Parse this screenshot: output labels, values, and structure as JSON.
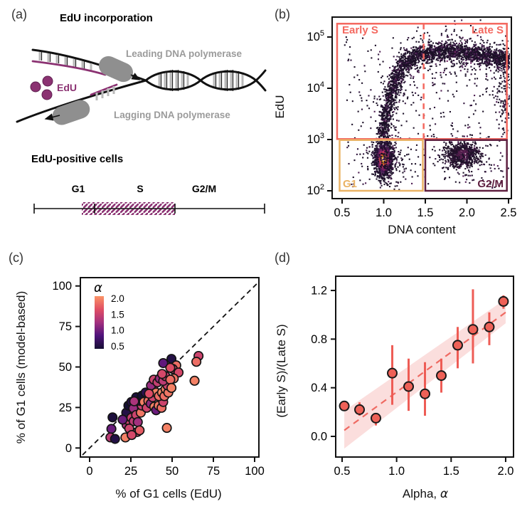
{
  "figure": {
    "panel_labels": {
      "a": "(a)",
      "b": "(b)",
      "c": "(c)",
      "d": "(d)"
    }
  },
  "panel_a": {
    "title": "EdU incorporation",
    "leading_label": "Leading DNA polymerase",
    "lagging_label": "Lagging DNA polymerase",
    "edu_label": "EdU",
    "subtitle": "EdU-positive cells",
    "phase_labels": [
      "G1",
      "S",
      "G2/M"
    ],
    "colors": {
      "edu_purple": "#8b3272",
      "polymerase_gray": "#8f8f8f",
      "label_gray": "#9b9b9b"
    }
  },
  "chart_data": [
    {
      "panel": "b",
      "type": "heatmap",
      "xlabel": "DNA content",
      "ylabel": "EdU",
      "xticks": [
        "0.5",
        "1.0",
        "1.5",
        "2.0",
        "2.5"
      ],
      "yticks": [
        "10^2",
        "10^3",
        "10^4",
        "10^5"
      ],
      "xlim": [
        0.42,
        2.53
      ],
      "ylog_lim": [
        1.85,
        5.39
      ],
      "gates": [
        {
          "label": "Early S",
          "color": "#f4685f"
        },
        {
          "label": "Late S",
          "color": "#f4685f"
        },
        {
          "label": "G1",
          "color": "#eab365"
        },
        {
          "label": "G2/M",
          "color": "#5f1f40"
        }
      ],
      "s_gate": {
        "x0": 0.44,
        "x1": 2.48,
        "y0": 3.01,
        "y1": 5.26
      },
      "g1_gate": {
        "x0": 0.47,
        "x1": 1.47,
        "y0": 2.0,
        "y1": 2.99
      },
      "g2_gate": {
        "x0": 1.5,
        "x1": 2.48,
        "y0": 2.0,
        "y1": 2.99
      },
      "divider_x": 1.48,
      "clusters": [
        {
          "kind": "path",
          "ramp": "arc",
          "n": 2300,
          "sx": 0.04,
          "sy": 0.09,
          "pts": [
            [
              1.0,
              3.02
            ],
            [
              1.03,
              3.45
            ],
            [
              1.1,
              4.0
            ],
            [
              1.2,
              4.38
            ],
            [
              1.33,
              4.58
            ],
            [
              1.48,
              4.67
            ],
            [
              1.63,
              4.71
            ],
            [
              1.8,
              4.72
            ],
            [
              1.95,
              4.7
            ],
            [
              2.1,
              4.66
            ],
            [
              2.25,
              4.62
            ],
            [
              2.4,
              4.58
            ],
            [
              2.5,
              4.55
            ]
          ]
        },
        {
          "kind": "path",
          "ramp": "dark",
          "n": 380,
          "sx": 0.09,
          "sy": 0.28,
          "pts": [
            [
              1.02,
              3.2
            ],
            [
              1.15,
              4.1
            ],
            [
              1.4,
              4.6
            ],
            [
              1.8,
              4.7
            ],
            [
              2.2,
              4.6
            ],
            [
              2.45,
              4.4
            ]
          ]
        },
        {
          "kind": "gauss",
          "ramp": "hot",
          "n": 1700,
          "cx": 1.0,
          "cy": 2.62,
          "sx": 0.045,
          "sy": 0.13
        },
        {
          "kind": "gauss",
          "ramp": "dark",
          "n": 320,
          "cx": 1.02,
          "cy": 2.6,
          "sx": 0.1,
          "sy": 0.24
        },
        {
          "kind": "gauss",
          "ramp": "g2",
          "n": 620,
          "cx": 1.95,
          "cy": 2.7,
          "sx": 0.1,
          "sy": 0.12
        },
        {
          "kind": "gauss",
          "ramp": "dark",
          "n": 150,
          "cx": 1.97,
          "cy": 2.65,
          "sx": 0.17,
          "sy": 0.22
        },
        {
          "kind": "uniform",
          "ramp": "dark",
          "n": 240,
          "x0": 0.52,
          "x1": 2.47,
          "y0": 3.0,
          "y1": 5.0
        },
        {
          "kind": "uniform",
          "ramp": "dark",
          "n": 120,
          "x0": 0.55,
          "x1": 2.45,
          "y0": 2.05,
          "y1": 2.95
        },
        {
          "kind": "path",
          "ramp": "dark",
          "n": 150,
          "sx": 0.05,
          "sy": 0.3,
          "pts": [
            [
              2.44,
              3.3
            ],
            [
              2.47,
              3.9
            ],
            [
              2.49,
              4.4
            ]
          ]
        }
      ]
    },
    {
      "panel": "c",
      "type": "scatter",
      "xlabel": "% of G1 cells (EdU)",
      "ylabel": "% of G1 cells (model-based)",
      "xticks": [
        0,
        25,
        50,
        75,
        100
      ],
      "yticks": [
        0,
        25,
        50,
        75,
        100
      ],
      "xlim": [
        -5.6,
        102.6
      ],
      "ylim": [
        -5.2,
        105.1
      ],
      "identity_line": true,
      "legend": {
        "title": "α",
        "labels": [
          "2.0",
          "1.5",
          "1.0",
          "0.5"
        ],
        "range": [
          0.5,
          2.0
        ]
      },
      "colormap": [
        [
          0.5,
          "#150f33"
        ],
        [
          0.875,
          "#4f127b"
        ],
        [
          1.25,
          "#a3307e"
        ],
        [
          1.625,
          "#e04e64"
        ],
        [
          2.0,
          "#fb9366"
        ]
      ],
      "points": [
        [
          13.9,
          18.9,
          0.55
        ],
        [
          13.2,
          11.8,
          1.0
        ],
        [
          12.6,
          6.5,
          1.4
        ],
        [
          15.4,
          5.6,
          0.6
        ],
        [
          21.7,
          6.5,
          1.9
        ],
        [
          22.4,
          14.3,
          1.3
        ],
        [
          23.1,
          17.3,
          1.5
        ],
        [
          24.6,
          22.4,
          0.55
        ],
        [
          22.2,
          21.8,
          0.6
        ],
        [
          23.5,
          26.2,
          0.5
        ],
        [
          25.3,
          28.4,
          0.6
        ],
        [
          26.5,
          24.5,
          1.2
        ],
        [
          25.3,
          18.7,
          1.45
        ],
        [
          26.7,
          16.5,
          1.4
        ],
        [
          28.2,
          20.4,
          1.5
        ],
        [
          29.2,
          16.0,
          1.25
        ],
        [
          28.9,
          9.9,
          1.5
        ],
        [
          30.3,
          10.9,
          1.7
        ],
        [
          31.0,
          21.8,
          1.85
        ],
        [
          31.6,
          26.2,
          1.45
        ],
        [
          30.3,
          29.1,
          0.6
        ],
        [
          28.2,
          31.3,
          0.55
        ],
        [
          31.7,
          32.3,
          0.5
        ],
        [
          33.9,
          34.2,
          0.65
        ],
        [
          32.9,
          28.4,
          1.9
        ],
        [
          34.6,
          24.8,
          1.5
        ],
        [
          35.6,
          29.1,
          1.8
        ],
        [
          37.0,
          27.4,
          1.15
        ],
        [
          38.2,
          31.3,
          1.5
        ],
        [
          39.2,
          25.5,
          1.9
        ],
        [
          40.3,
          23.3,
          1.0
        ],
        [
          41.8,
          26.2,
          1.85
        ],
        [
          43.6,
          24.8,
          1.8
        ],
        [
          44.6,
          28.4,
          1.5
        ],
        [
          38.6,
          36.4,
          1.4
        ],
        [
          37.2,
          38.6,
          1.2
        ],
        [
          38.9,
          42.2,
          1.5
        ],
        [
          41.1,
          40.5,
          1.45
        ],
        [
          42.5,
          42.9,
          1.2
        ],
        [
          40.3,
          34.2,
          1.9
        ],
        [
          42.0,
          32.0,
          1.8
        ],
        [
          43.9,
          34.2,
          1.95
        ],
        [
          45.3,
          32.0,
          1.8
        ],
        [
          46.0,
          36.4,
          1.9
        ],
        [
          47.7,
          34.2,
          1.85
        ],
        [
          47.2,
          38.6,
          1.5
        ],
        [
          44.6,
          41.4,
          1.4
        ],
        [
          46.0,
          44.3,
          1.45
        ],
        [
          43.9,
          45.7,
          1.55
        ],
        [
          44.6,
          52.4,
          0.95
        ],
        [
          49.6,
          55.0,
          0.6
        ],
        [
          52.5,
          51.0,
          1.8
        ],
        [
          50.4,
          48.8,
          1.5
        ],
        [
          53.9,
          46.6,
          1.55
        ],
        [
          48.9,
          49.5,
          1.6
        ],
        [
          51.0,
          42.9,
          1.85
        ],
        [
          48.9,
          42.2,
          1.8
        ],
        [
          49.6,
          37.1,
          1.9
        ],
        [
          46.8,
          12.4,
          1.9
        ],
        [
          63.6,
          41.5,
          1.9
        ],
        [
          66.0,
          56.8,
          1.5
        ],
        [
          64.7,
          53.2,
          1.8
        ],
        [
          20.0,
          17.5,
          1.0
        ],
        [
          27.0,
          28.8,
          1.3
        ],
        [
          36.0,
          33.5,
          1.6
        ],
        [
          24.0,
          12.0,
          1.5
        ],
        [
          25.5,
          8.0,
          1.55
        ]
      ]
    },
    {
      "panel": "d",
      "type": "scatter",
      "xlabel_prefix": "Alpha, ",
      "xlabel_symbol": "α",
      "ylabel": "(Early S)/(Late S)",
      "xticks": [
        "0.5",
        "1.0",
        "1.5",
        "2.0"
      ],
      "yticks": [
        "0.0",
        "0.4",
        "0.8",
        "1.2"
      ],
      "points": [
        [
          0.52,
          0.25,
          0.25,
          0.25
        ],
        [
          0.66,
          0.22,
          0.17,
          0.28
        ],
        [
          0.81,
          0.15,
          0.09,
          0.19
        ],
        [
          0.96,
          0.52,
          0.26,
          0.75
        ],
        [
          1.11,
          0.41,
          0.21,
          0.64
        ],
        [
          1.26,
          0.35,
          0.17,
          0.61
        ],
        [
          1.41,
          0.5,
          0.36,
          0.64
        ],
        [
          1.56,
          0.75,
          0.56,
          0.9
        ],
        [
          1.7,
          0.88,
          0.6,
          1.21
        ],
        [
          1.85,
          0.9,
          0.75,
          1.02
        ],
        [
          1.98,
          1.11,
          1.05,
          1.16
        ]
      ],
      "fit": {
        "x1": 0.52,
        "y1": 0.05,
        "x2": 2.0,
        "y2": 1.02
      },
      "band": [
        [
          0.52,
          -0.1
        ],
        [
          2.0,
          0.93
        ],
        [
          2.0,
          1.13
        ],
        [
          0.52,
          0.21
        ]
      ],
      "colors": {
        "point": "#ee6157",
        "error": "#ee5c55",
        "band": "#f6b6b3",
        "line": "#ef6a62"
      }
    }
  ]
}
